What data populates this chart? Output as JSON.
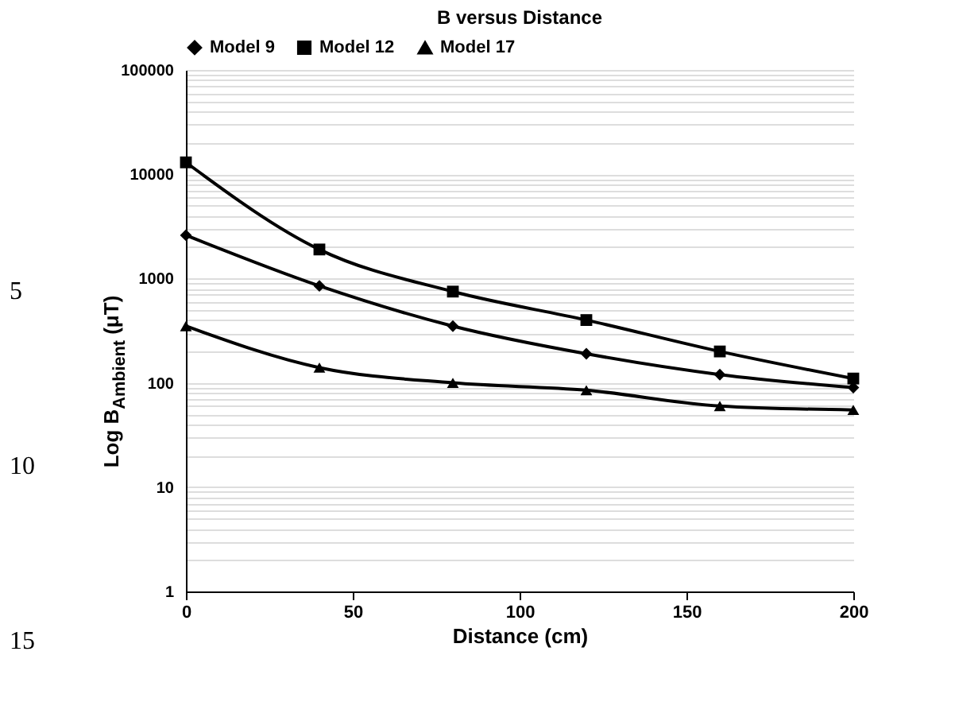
{
  "chart_data": {
    "type": "line",
    "title": "B versus Distance",
    "xlabel": "Distance (cm)",
    "ylabel": "Log B$_{Ambient}$ (μT)",
    "x": [
      0,
      40,
      80,
      120,
      160,
      200
    ],
    "series": [
      {
        "name": "Model 9",
        "color": "#000000",
        "marker": "diamond",
        "values": [
          2600,
          850,
          350,
          190,
          120,
          90
        ]
      },
      {
        "name": "Model 12",
        "color": "#000000",
        "marker": "square",
        "values": [
          13000,
          1900,
          750,
          400,
          200,
          110
        ]
      },
      {
        "name": "Model 17",
        "color": "#000000",
        "marker": "triangle",
        "values": [
          350,
          140,
          100,
          85,
          60,
          55
        ]
      }
    ],
    "xlim": [
      0,
      200
    ],
    "xticks": [
      0,
      50,
      100,
      150,
      200
    ],
    "ylim": [
      1,
      100000
    ],
    "yticks": [
      1,
      10,
      100,
      1000,
      10000,
      100000
    ],
    "log": true,
    "grid": "y",
    "legend": "top",
    "line_style": "solid",
    "annotations": [
      "5",
      "10",
      "15"
    ]
  }
}
